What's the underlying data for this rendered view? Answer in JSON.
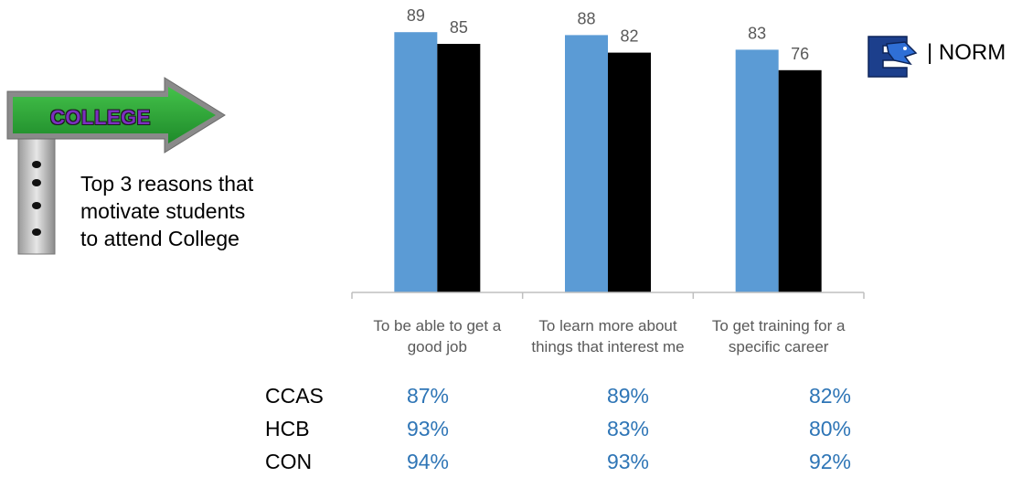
{
  "chart_data": {
    "type": "bar",
    "categories": [
      [
        "To be able to get a",
        "good job"
      ],
      [
        "To learn more about",
        "things that interest me"
      ],
      [
        "To get training for a",
        "specific career"
      ]
    ],
    "series": [
      {
        "values": [
          89,
          88,
          83
        ],
        "color": "#5b9bd5"
      },
      {
        "values": [
          85,
          82,
          76
        ],
        "color": "#000000"
      }
    ],
    "ylim": [
      0,
      100
    ],
    "grid": false,
    "title": "",
    "xlabel": "",
    "ylabel": ""
  },
  "sign": {
    "label": "COLLEGE"
  },
  "side_text": [
    "Top 3 reasons that",
    "motivate students",
    "to attend College"
  ],
  "header": {
    "norm_label": "| NORM"
  },
  "stats_table": {
    "rows": [
      {
        "label": "CCAS",
        "values": [
          "87%",
          "89%",
          "82%"
        ]
      },
      {
        "label": "HCB",
        "values": [
          "93%",
          "83%",
          "80%"
        ]
      },
      {
        "label": "CON",
        "values": [
          "94%",
          "93%",
          "92%"
        ]
      }
    ],
    "value_color": "#2e75b6"
  }
}
